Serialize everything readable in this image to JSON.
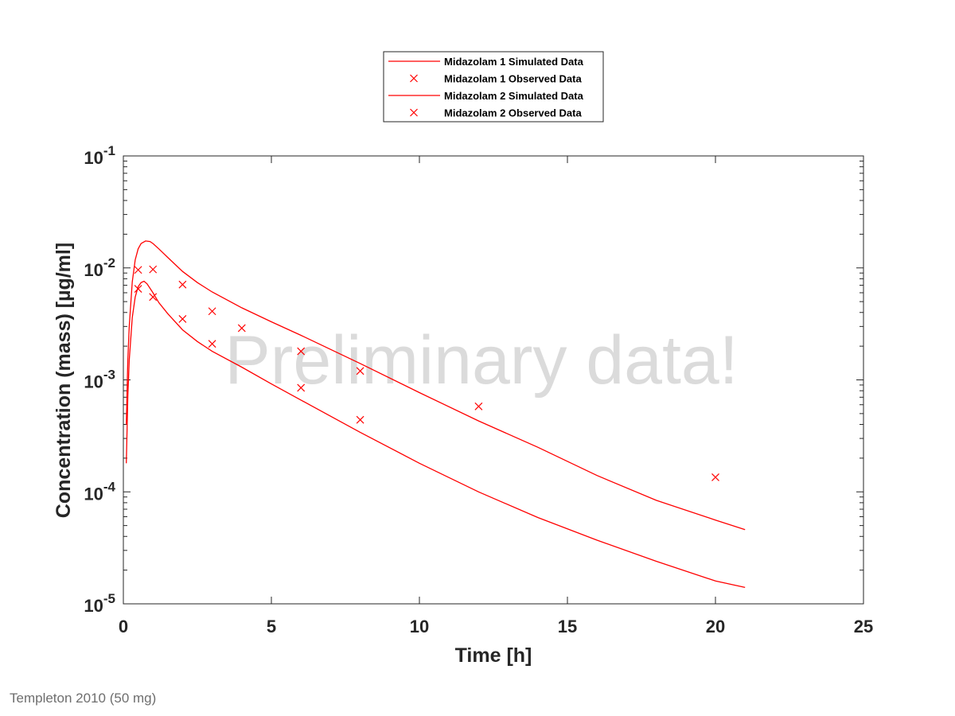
{
  "chart_data": {
    "type": "line",
    "xlabel": "Time [h]",
    "ylabel": "Concentration (mass) [µg/ml]",
    "xlim": [
      0,
      25
    ],
    "ylim": [
      1e-05,
      0.1
    ],
    "yscale": "log",
    "xticks": [
      0,
      5,
      10,
      15,
      20,
      25
    ],
    "yticks": [
      {
        "value": 0.1,
        "base": "10",
        "exp": "-1"
      },
      {
        "value": 0.01,
        "base": "10",
        "exp": "-2"
      },
      {
        "value": 0.001,
        "base": "10",
        "exp": "-3"
      },
      {
        "value": 0.0001,
        "base": "10",
        "exp": "-4"
      },
      {
        "value": 1e-05,
        "base": "10",
        "exp": "-5"
      }
    ],
    "grid": false,
    "legend_position": "top-center",
    "watermark": "Preliminary data!",
    "series": [
      {
        "name": "Midazolam 1 Simulated Data",
        "kind": "line",
        "color": "#ff0000",
        "x": [
          0.1,
          0.15,
          0.2,
          0.3,
          0.4,
          0.5,
          0.6,
          0.75,
          0.9,
          1.0,
          1.2,
          1.5,
          2.0,
          2.5,
          3.0,
          4.0,
          5.0,
          6.0,
          8.0,
          10.0,
          12.0,
          14.0,
          16.0,
          18.0,
          20.0,
          21.0
        ],
        "y": [
          0.0004,
          0.0015,
          0.003,
          0.0075,
          0.0118,
          0.0148,
          0.0165,
          0.0174,
          0.0172,
          0.0165,
          0.0148,
          0.0124,
          0.0093,
          0.0074,
          0.0061,
          0.0044,
          0.0033,
          0.0025,
          0.0014,
          0.00077,
          0.00043,
          0.00025,
          0.00014,
          8.4e-05,
          5.6e-05,
          4.6e-05
        ]
      },
      {
        "name": "Midazolam 1 Observed Data",
        "kind": "scatter",
        "color": "#ff0000",
        "x": [
          0.5,
          1.0,
          2.0,
          3.0,
          4.0,
          6.0,
          8.0,
          12.0,
          20.0
        ],
        "y": [
          0.0096,
          0.0097,
          0.0071,
          0.0041,
          0.0029,
          0.0018,
          0.0012,
          0.00058,
          0.000135
        ]
      },
      {
        "name": "Midazolam 2 Simulated Data",
        "kind": "line",
        "color": "#ff0000",
        "x": [
          0.1,
          0.15,
          0.2,
          0.3,
          0.4,
          0.5,
          0.6,
          0.7,
          0.8,
          1.0,
          1.2,
          1.5,
          2.0,
          2.5,
          3.0,
          4.0,
          5.0,
          6.0,
          8.0,
          10.0,
          12.0,
          14.0,
          16.0,
          18.0,
          20.0,
          21.0
        ],
        "y": [
          0.00018,
          0.0007,
          0.0015,
          0.0036,
          0.0055,
          0.0068,
          0.0074,
          0.0076,
          0.0072,
          0.006,
          0.0049,
          0.0039,
          0.0028,
          0.0022,
          0.0018,
          0.0013,
          0.00092,
          0.00066,
          0.00034,
          0.00018,
          0.0001,
          5.9e-05,
          3.7e-05,
          2.4e-05,
          1.6e-05,
          1.4e-05
        ]
      },
      {
        "name": "Midazolam 2 Observed Data",
        "kind": "scatter",
        "color": "#ff0000",
        "x": [
          0.5,
          1.0,
          2.0,
          3.0,
          6.0,
          8.0
        ],
        "y": [
          0.0065,
          0.0055,
          0.0035,
          0.0021,
          0.00085,
          0.00044
        ]
      }
    ]
  },
  "footnote": "Templeton 2010 (50 mg)"
}
